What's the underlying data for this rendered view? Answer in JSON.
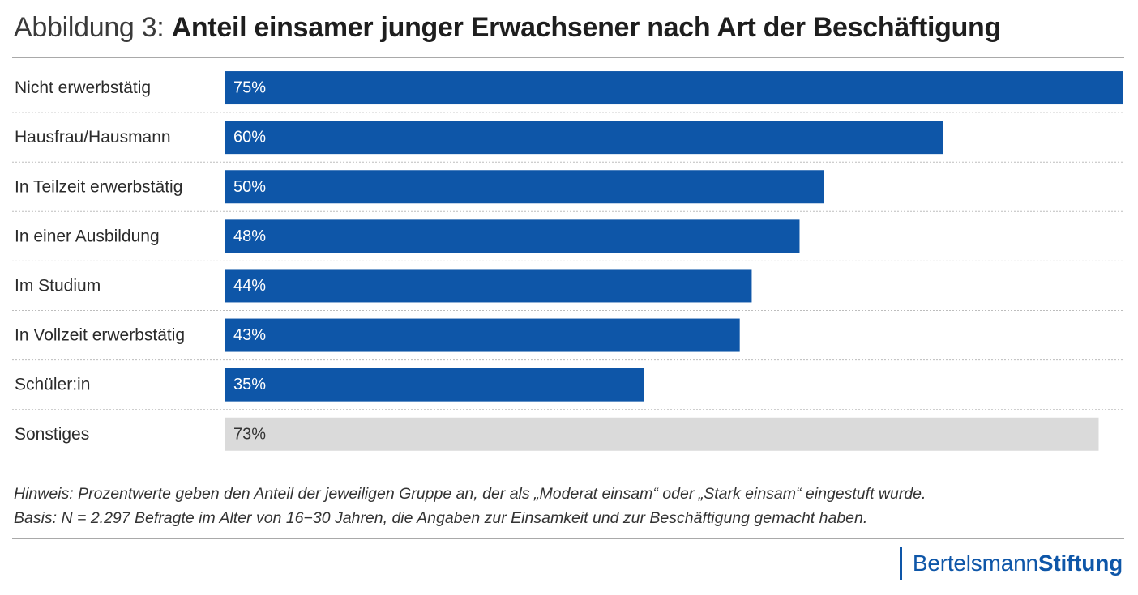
{
  "title": {
    "prefix": "Abbildung 3:",
    "main": "Anteil einsamer junger Erwachsener nach Art der Beschäftigung"
  },
  "colors": {
    "primary_bar": "#0e56a8",
    "other_bar": "#dadada",
    "label_on_primary": "#ffffff",
    "label_on_other": "#333333"
  },
  "chart_data": {
    "type": "bar",
    "orientation": "horizontal",
    "categories": [
      "Nicht erwerbstätig",
      "Hausfrau/Hausmann",
      "In Teilzeit erwerbstätig",
      "In einer Ausbildung",
      "Im Studium",
      "In Vollzeit erwerbstätig",
      "Schüler:in",
      "Sonstiges"
    ],
    "values": [
      75,
      60,
      50,
      48,
      44,
      43,
      35,
      73
    ],
    "value_labels": [
      "75%",
      "60%",
      "50%",
      "48%",
      "44%",
      "43%",
      "35%",
      "73%"
    ],
    "highlight": [
      true,
      true,
      true,
      true,
      true,
      true,
      true,
      false
    ],
    "unit": "%",
    "xlim": [
      0,
      75
    ],
    "grid": false
  },
  "notes": [
    "Hinweis: Prozentwerte geben den Anteil der jeweiligen Gruppe an, der als „Moderat einsam“ oder „Stark einsam“ eingestuft wurde.",
    "Basis: N = 2.297 Befragte im Alter von 16−30 Jahren, die Angaben zur Einsamkeit und zur Beschäftigung gemacht haben."
  ],
  "logo": {
    "light": "Bertelsmann",
    "bold": "Stiftung"
  }
}
